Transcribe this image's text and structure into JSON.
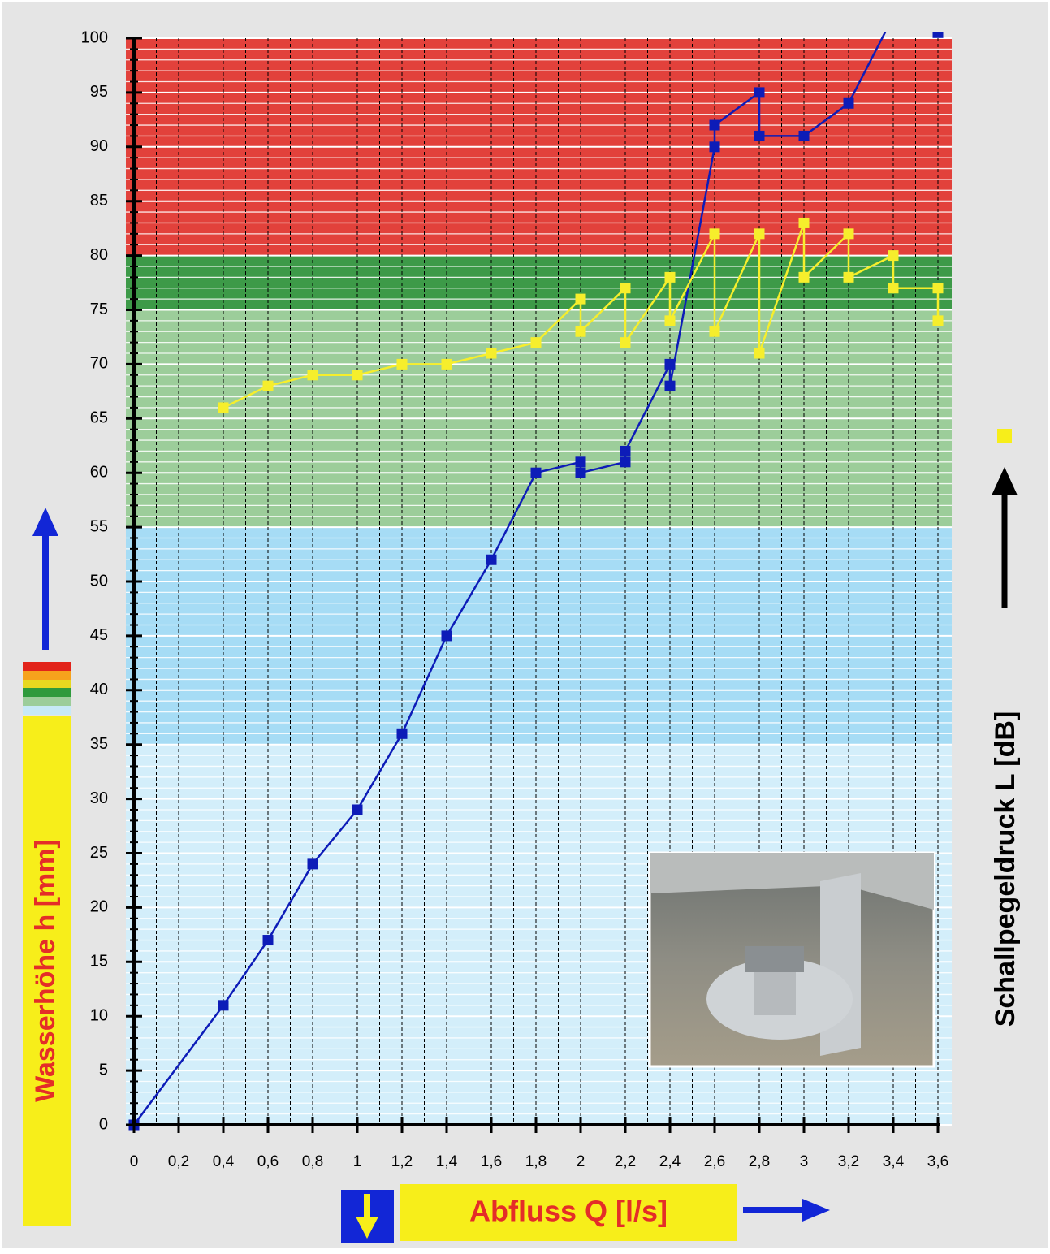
{
  "chart_data": {
    "type": "line",
    "y_label": "Wasserhöhe h [mm]",
    "x_label": "Abfluss Q [l/s]",
    "y2_label": "Schallpegeldruck L [dB]",
    "xlim": [
      0,
      3.6
    ],
    "ylim": [
      0,
      100
    ],
    "xticks": [
      0,
      {
        "value": 0.2,
        "label": "0,2"
      },
      {
        "value": 0.4,
        "label": "0,4"
      },
      {
        "value": 0.6,
        "label": "0,6"
      },
      {
        "value": 0.8,
        "label": "0,8"
      },
      1,
      {
        "value": 1.2,
        "label": "1,2"
      },
      {
        "value": 1.4,
        "label": "1,4"
      },
      {
        "value": 1.6,
        "label": "1,6"
      },
      {
        "value": 1.8,
        "label": "1,8"
      },
      2,
      {
        "value": 2.2,
        "label": "2,2"
      },
      {
        "value": 2.4,
        "label": "2,4"
      },
      {
        "value": 2.6,
        "label": "2,6"
      },
      {
        "value": 2.8,
        "label": "2,8"
      },
      3,
      {
        "value": 3.2,
        "label": "3,2"
      },
      {
        "value": 3.4,
        "label": "3,4"
      },
      {
        "value": 3.6,
        "label": "3,6"
      }
    ],
    "yticks": [
      0,
      5,
      10,
      15,
      20,
      25,
      30,
      35,
      40,
      45,
      50,
      55,
      60,
      65,
      70,
      75,
      80,
      85,
      90,
      95,
      100
    ],
    "grid": true,
    "bands": [
      {
        "from": 80,
        "to": 100,
        "color": "#e2413b"
      },
      {
        "from": 75,
        "to": 80,
        "color": "#3d9a48"
      },
      {
        "from": 55,
        "to": 75,
        "color": "#9ccd9a"
      },
      {
        "from": 35,
        "to": 55,
        "color": "#a6dcf5"
      },
      {
        "from": 0,
        "to": 35,
        "color": "#d3eefa"
      }
    ],
    "series": [
      {
        "color": "#0d1cb8",
        "x": [
          0,
          0.4,
          0.6,
          0.8,
          1,
          1.2,
          1.4,
          1.6,
          1.8,
          2,
          2,
          2.2,
          2.2,
          2.4,
          2.4,
          2.6,
          2.6,
          2.8,
          2.8,
          3,
          3.2,
          3.4,
          3.6
        ],
        "values": [
          0,
          11,
          17,
          24,
          29,
          36,
          45,
          52,
          60,
          61,
          60,
          61,
          62,
          70,
          68,
          90,
          92,
          95,
          91,
          91,
          94,
          102,
          100.5
        ]
      },
      {
        "color": "#f6ee2c",
        "x": [
          0.4,
          0.6,
          0.8,
          1,
          1.2,
          1.4,
          1.6,
          1.8,
          2,
          2,
          2.2,
          2.2,
          2.4,
          2.4,
          2.6,
          2.6,
          2.8,
          2.8,
          3,
          3,
          3.2,
          3.2,
          3.4,
          3.4,
          3.6,
          3.6
        ],
        "values": [
          66,
          68,
          69,
          69,
          70,
          70,
          71,
          72,
          76,
          73,
          77,
          72,
          78,
          74,
          82,
          73,
          82,
          71,
          83,
          78,
          82,
          78,
          80,
          77,
          77,
          74
        ]
      }
    ]
  }
}
